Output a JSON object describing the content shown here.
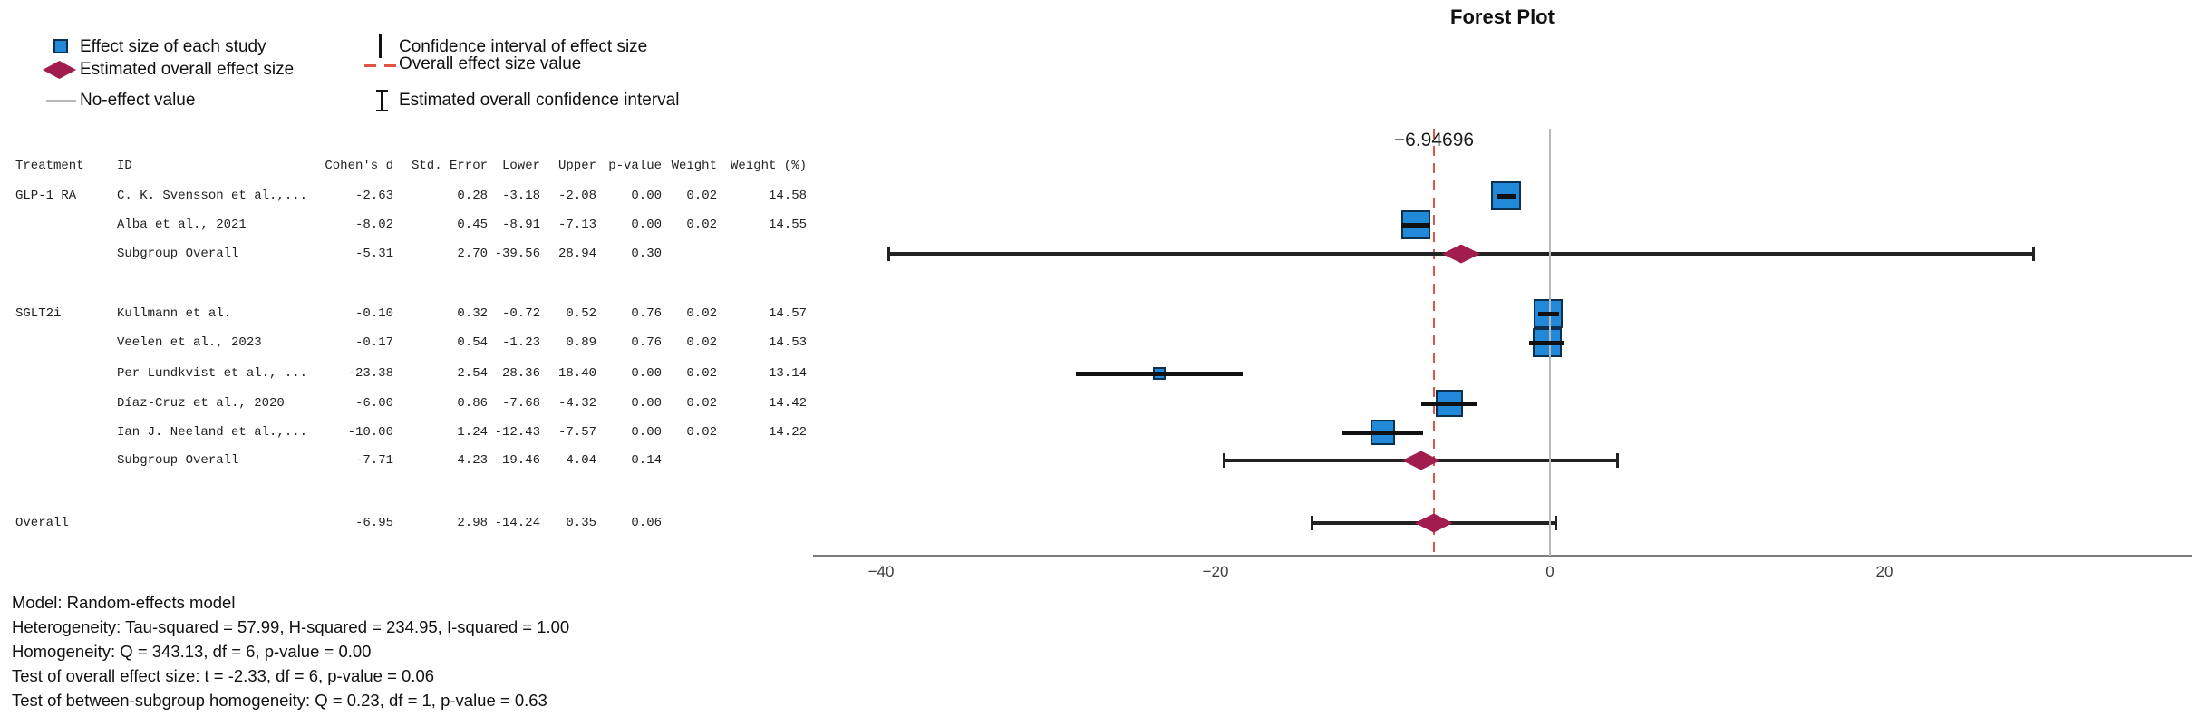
{
  "title": "Forest Plot",
  "legend": {
    "items": [
      {
        "icon": "study-square-icon",
        "label": "Effect size of each study"
      },
      {
        "icon": "overall-diamond-icon",
        "label": "Estimated overall effect size"
      },
      {
        "icon": "no-effect-line-icon",
        "label": "No-effect value"
      },
      {
        "icon": "ci-line-icon",
        "label": "Confidence interval of effect size"
      },
      {
        "icon": "overall-value-line-icon",
        "label": "Overall effect size value"
      },
      {
        "icon": "overall-ci-ibeam-icon",
        "label": "Estimated overall confidence interval"
      }
    ]
  },
  "table": {
    "columns": [
      "Treatment",
      "ID",
      "Cohen's d",
      "Std. Error",
      "Lower",
      "Upper",
      "p-value",
      "Weight",
      "Weight (%)"
    ]
  },
  "chart_data": {
    "type": "forest",
    "title": "Forest Plot",
    "x_ticks": [
      -40,
      -20,
      0,
      20
    ],
    "x_range": [
      -44,
      38.4
    ],
    "grid": false,
    "legend_position": "top-left",
    "no_effect_value": 0,
    "overall_effect_line": {
      "value": -6.94696,
      "label": "−6.94696"
    },
    "rows": [
      {
        "treatment": "GLP-1 RA",
        "id": "C. K. Svensson et al.,...",
        "kind": "study",
        "cohens_d": -2.63,
        "std_error": 0.28,
        "lower": -3.18,
        "upper": -2.08,
        "p_value": 0.0,
        "weight": 0.02,
        "weight_pct": 14.58
      },
      {
        "treatment": "",
        "id": "Alba et al., 2021",
        "kind": "study",
        "cohens_d": -8.02,
        "std_error": 0.45,
        "lower": -8.91,
        "upper": -7.13,
        "p_value": 0.0,
        "weight": 0.02,
        "weight_pct": 14.55
      },
      {
        "treatment": "",
        "id": "Subgroup Overall",
        "kind": "subgroup",
        "cohens_d": -5.31,
        "std_error": 2.7,
        "lower": -39.56,
        "upper": 28.94,
        "p_value": 0.3,
        "weight": null,
        "weight_pct": null
      },
      {
        "treatment": "SGLT2i",
        "id": "Kullmann et al.",
        "kind": "study",
        "cohens_d": -0.1,
        "std_error": 0.32,
        "lower": -0.72,
        "upper": 0.52,
        "p_value": 0.76,
        "weight": 0.02,
        "weight_pct": 14.57
      },
      {
        "treatment": "",
        "id": "Veelen et al., 2023",
        "kind": "study",
        "cohens_d": -0.17,
        "std_error": 0.54,
        "lower": -1.23,
        "upper": 0.89,
        "p_value": 0.76,
        "weight": 0.02,
        "weight_pct": 14.53
      },
      {
        "treatment": "",
        "id": "Per Lundkvist et al., ...",
        "kind": "study",
        "cohens_d": -23.38,
        "std_error": 2.54,
        "lower": -28.36,
        "upper": -18.4,
        "p_value": 0.0,
        "weight": 0.02,
        "weight_pct": 13.14
      },
      {
        "treatment": "",
        "id": "Díaz-Cruz et al., 2020",
        "kind": "study",
        "cohens_d": -6.0,
        "std_error": 0.86,
        "lower": -7.68,
        "upper": -4.32,
        "p_value": 0.0,
        "weight": 0.02,
        "weight_pct": 14.42
      },
      {
        "treatment": "",
        "id": "Ian J. Neeland et al.,...",
        "kind": "study",
        "cohens_d": -10.0,
        "std_error": 1.24,
        "lower": -12.43,
        "upper": -7.57,
        "p_value": 0.0,
        "weight": 0.02,
        "weight_pct": 14.22
      },
      {
        "treatment": "",
        "id": "Subgroup Overall",
        "kind": "subgroup",
        "cohens_d": -7.71,
        "std_error": 4.23,
        "lower": -19.46,
        "upper": 4.04,
        "p_value": 0.14,
        "weight": null,
        "weight_pct": null
      },
      {
        "treatment": "Overall",
        "id": "",
        "kind": "overall",
        "cohens_d": -6.95,
        "std_error": 2.98,
        "lower": -14.24,
        "upper": 0.35,
        "p_value": 0.06,
        "weight": null,
        "weight_pct": null
      }
    ]
  },
  "model_notes": {
    "lines": [
      "Model: Random-effects model",
      "Heterogeneity: Tau-squared = 57.99, H-squared = 234.95, I-squared = 1.00",
      "Homogeneity: Q = 343.13, df = 6, p-value = 0.00",
      "Test of overall effect size: t = -2.33, df = 6, p-value = 0.06",
      "Test of between-subgroup homogeneity: Q = 0.23, df = 1, p-value = 0.63"
    ]
  },
  "colors": {
    "study_marker": "#2189d8",
    "study_marker_border": "#0c3050",
    "overall_diamond": "#a01d4e",
    "overall_line": "#e05347",
    "no_effect_line": "#b8b8b8",
    "axis": "#7d7d7d",
    "ci": "#111111"
  }
}
